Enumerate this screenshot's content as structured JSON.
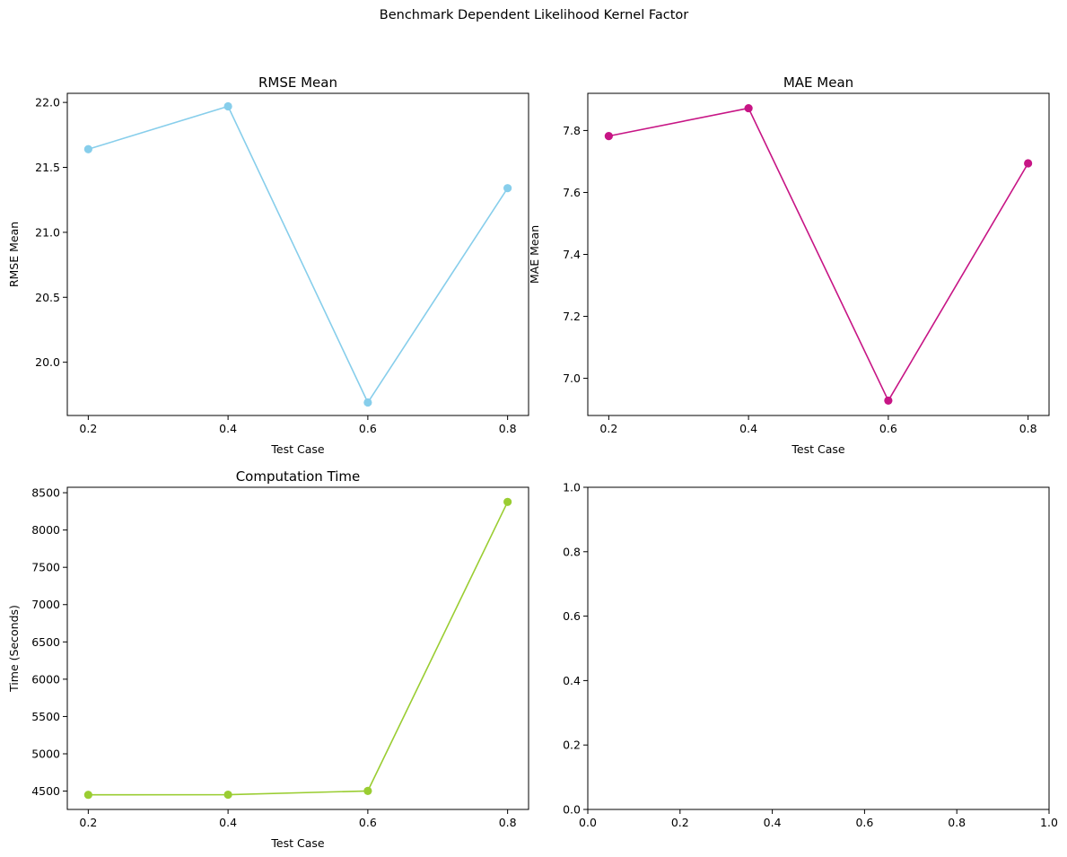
{
  "figure": {
    "suptitle": "Benchmark Dependent Likelihood Kernel Factor"
  },
  "chart_data": [
    {
      "type": "line",
      "title": "RMSE Mean",
      "xlabel": "Test Case",
      "ylabel": "RMSE Mean",
      "x": [
        0.2,
        0.4,
        0.6,
        0.8
      ],
      "series": [
        {
          "values": [
            21.64,
            21.97,
            19.69,
            21.34
          ],
          "color": "#87CEEB"
        }
      ],
      "xticks": [
        "0.2",
        "0.4",
        "0.6",
        "0.8"
      ],
      "yticks": [
        "20.0",
        "20.5",
        "21.0",
        "21.5",
        "22.0"
      ],
      "xlim": [
        0.17,
        0.83
      ],
      "ylim": [
        19.59,
        22.07
      ],
      "grid": false
    },
    {
      "type": "line",
      "title": "MAE Mean",
      "xlabel": "Test Case",
      "ylabel": "MAE Mean",
      "x": [
        0.2,
        0.4,
        0.6,
        0.8
      ],
      "series": [
        {
          "values": [
            7.782,
            7.872,
            6.928,
            7.694
          ],
          "color": "#C71585"
        }
      ],
      "xticks": [
        "0.2",
        "0.4",
        "0.6",
        "0.8"
      ],
      "yticks": [
        "7.0",
        "7.2",
        "7.4",
        "7.6",
        "7.8"
      ],
      "xlim": [
        0.17,
        0.83
      ],
      "ylim": [
        6.88,
        7.92
      ],
      "grid": false
    },
    {
      "type": "line",
      "title": "Computation Time",
      "xlabel": "Test Case",
      "ylabel": "Time (Seconds)",
      "x": [
        0.2,
        0.4,
        0.6,
        0.8
      ],
      "series": [
        {
          "values": [
            4450,
            4452,
            4502,
            8377
          ],
          "color": "#9ACD32"
        }
      ],
      "xticks": [
        "0.2",
        "0.4",
        "0.6",
        "0.8"
      ],
      "yticks": [
        "4500",
        "5000",
        "5500",
        "6000",
        "6500",
        "7000",
        "7500",
        "8000",
        "8500"
      ],
      "xlim": [
        0.17,
        0.83
      ],
      "ylim": [
        4254,
        8573
      ],
      "grid": false
    },
    {
      "type": "line",
      "title": "",
      "xlabel": "",
      "ylabel": "",
      "x": [],
      "series": [],
      "xticks": [
        "0.0",
        "0.2",
        "0.4",
        "0.6",
        "0.8",
        "1.0"
      ],
      "yticks": [
        "0.0",
        "0.2",
        "0.4",
        "0.6",
        "0.8",
        "1.0"
      ],
      "xlim": [
        0,
        1
      ],
      "ylim": [
        0,
        1
      ],
      "grid": false
    }
  ]
}
